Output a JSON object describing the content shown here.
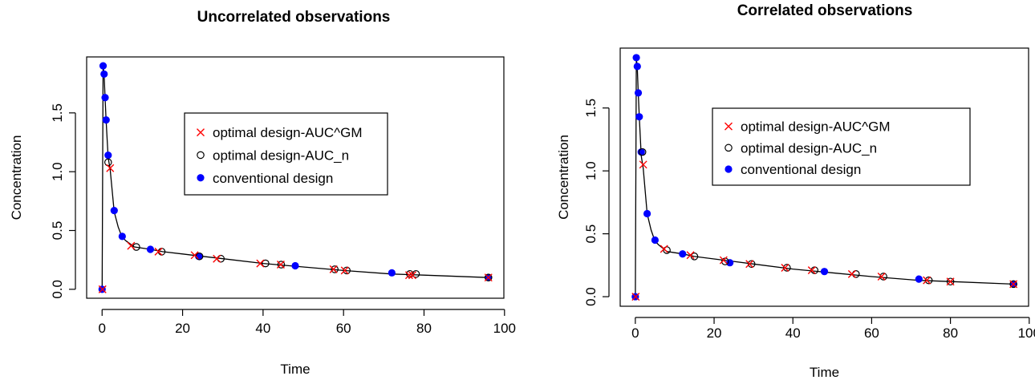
{
  "chart_data": [
    {
      "type": "scatter",
      "title": "Uncorrelated observations",
      "xlabel": "Time",
      "ylabel": "Concentration",
      "xlim": [
        -3.84,
        99.84
      ],
      "ylim": [
        -0.076,
        1.976
      ],
      "xticks": [
        0,
        20,
        40,
        60,
        80,
        100
      ],
      "xtick_labels": [
        "0",
        "20",
        "40",
        "60",
        "80",
        "100"
      ],
      "yticks": [
        0.0,
        0.5,
        1.0,
        1.5
      ],
      "ytick_labels": [
        "0.0",
        "0.5",
        "1.0",
        "1.5"
      ],
      "grid": false,
      "legend": {
        "position": "center-right",
        "entries": [
          "optimal design-AUC^GM",
          "optimal design-AUC_n",
          "conventional design"
        ]
      },
      "curve": {
        "x": [
          0,
          0.25,
          0.5,
          0.75,
          1,
          1.5,
          2,
          3,
          4,
          5,
          6,
          8,
          10,
          12,
          15,
          20,
          25,
          30,
          40,
          50,
          60,
          72,
          80,
          96
        ],
        "y": [
          0,
          1.9,
          1.82,
          1.62,
          1.43,
          1.12,
          1.02,
          0.66,
          0.53,
          0.44,
          0.41,
          0.36,
          0.35,
          0.34,
          0.32,
          0.3,
          0.28,
          0.26,
          0.22,
          0.19,
          0.16,
          0.13,
          0.12,
          0.1
        ]
      },
      "series": [
        {
          "name": "optimal design-AUC^GM",
          "marker": "x",
          "color": "#ff0000",
          "x": [
            0.1,
            2.0,
            7.2,
            14.0,
            23.0,
            28.5,
            39.3,
            44.4,
            57.5,
            60.3,
            76.3,
            77.1,
            96.0
          ],
          "y": [
            0.0,
            1.03,
            0.37,
            0.32,
            0.29,
            0.26,
            0.22,
            0.21,
            0.17,
            0.16,
            0.12,
            0.12,
            0.1
          ]
        },
        {
          "name": "optimal design-AUC_n",
          "marker": "open-circle",
          "color": "#000000",
          "x": [
            1.5,
            8.5,
            14.8,
            24.2,
            29.5,
            40.6,
            44.5,
            57.8,
            60.8,
            76.5,
            78.0,
            96.0
          ],
          "y": [
            1.08,
            0.36,
            0.32,
            0.28,
            0.26,
            0.22,
            0.21,
            0.17,
            0.16,
            0.13,
            0.13,
            0.1
          ]
        },
        {
          "name": "conventional design",
          "marker": "filled-circle",
          "color": "#0000ff",
          "x": [
            0.0,
            0.25,
            0.5,
            0.75,
            1.0,
            1.5,
            3.0,
            5.0,
            12.0,
            24.0,
            48.0,
            72.0,
            96.0
          ],
          "y": [
            0.0,
            1.9,
            1.83,
            1.63,
            1.44,
            1.14,
            0.67,
            0.45,
            0.34,
            0.28,
            0.2,
            0.14,
            0.1
          ]
        }
      ]
    },
    {
      "type": "scatter",
      "title": "Correlated observations",
      "xlabel": "Time",
      "ylabel": "Concentration",
      "xlim": [
        -3.84,
        99.84
      ],
      "ylim": [
        -0.076,
        1.976
      ],
      "xticks": [
        0,
        20,
        40,
        60,
        80,
        100
      ],
      "xtick_labels": [
        "0",
        "20",
        "40",
        "60",
        "80",
        "100"
      ],
      "yticks": [
        0.0,
        0.5,
        1.0,
        1.5
      ],
      "ytick_labels": [
        "0.0",
        "0.5",
        "1.0",
        "1.5"
      ],
      "grid": false,
      "legend": {
        "position": "center-right",
        "entries": [
          "optimal design-AUC^GM",
          "optimal design-AUC_n",
          "conventional design"
        ]
      },
      "curve": {
        "x": [
          0,
          0.25,
          0.5,
          0.75,
          1,
          1.5,
          2,
          3,
          4,
          5,
          6,
          8,
          10,
          12,
          15,
          20,
          25,
          30,
          40,
          50,
          60,
          72,
          80,
          96
        ],
        "y": [
          0,
          1.9,
          1.82,
          1.62,
          1.43,
          1.12,
          1.02,
          0.66,
          0.53,
          0.44,
          0.41,
          0.36,
          0.35,
          0.34,
          0.32,
          0.3,
          0.28,
          0.26,
          0.22,
          0.19,
          0.16,
          0.13,
          0.12,
          0.1
        ]
      },
      "series": [
        {
          "name": "optimal design-AUC^GM",
          "marker": "x",
          "color": "#ff0000",
          "x": [
            0.1,
            2.0,
            7.3,
            14.0,
            22.4,
            29.0,
            38.0,
            44.8,
            55.0,
            62.5,
            74.0,
            80.0,
            96.0
          ],
          "y": [
            0.0,
            1.05,
            0.38,
            0.33,
            0.29,
            0.26,
            0.23,
            0.21,
            0.18,
            0.16,
            0.13,
            0.12,
            0.1
          ]
        },
        {
          "name": "optimal design-AUC_n",
          "marker": "open-circle",
          "color": "#000000",
          "x": [
            1.8,
            8.0,
            15.0,
            22.8,
            29.5,
            38.5,
            45.5,
            56.0,
            63.0,
            74.5,
            80.0,
            96.0
          ],
          "y": [
            1.15,
            0.37,
            0.32,
            0.28,
            0.26,
            0.23,
            0.21,
            0.18,
            0.16,
            0.13,
            0.12,
            0.1
          ]
        },
        {
          "name": "conventional design",
          "marker": "filled-circle",
          "color": "#0000ff",
          "x": [
            0.0,
            0.25,
            0.5,
            0.75,
            1.0,
            1.5,
            3.0,
            5.0,
            12.0,
            24.0,
            48.0,
            72.0,
            96.0
          ],
          "y": [
            0.0,
            1.9,
            1.83,
            1.62,
            1.43,
            1.15,
            0.66,
            0.45,
            0.34,
            0.27,
            0.2,
            0.14,
            0.1
          ]
        }
      ]
    }
  ]
}
